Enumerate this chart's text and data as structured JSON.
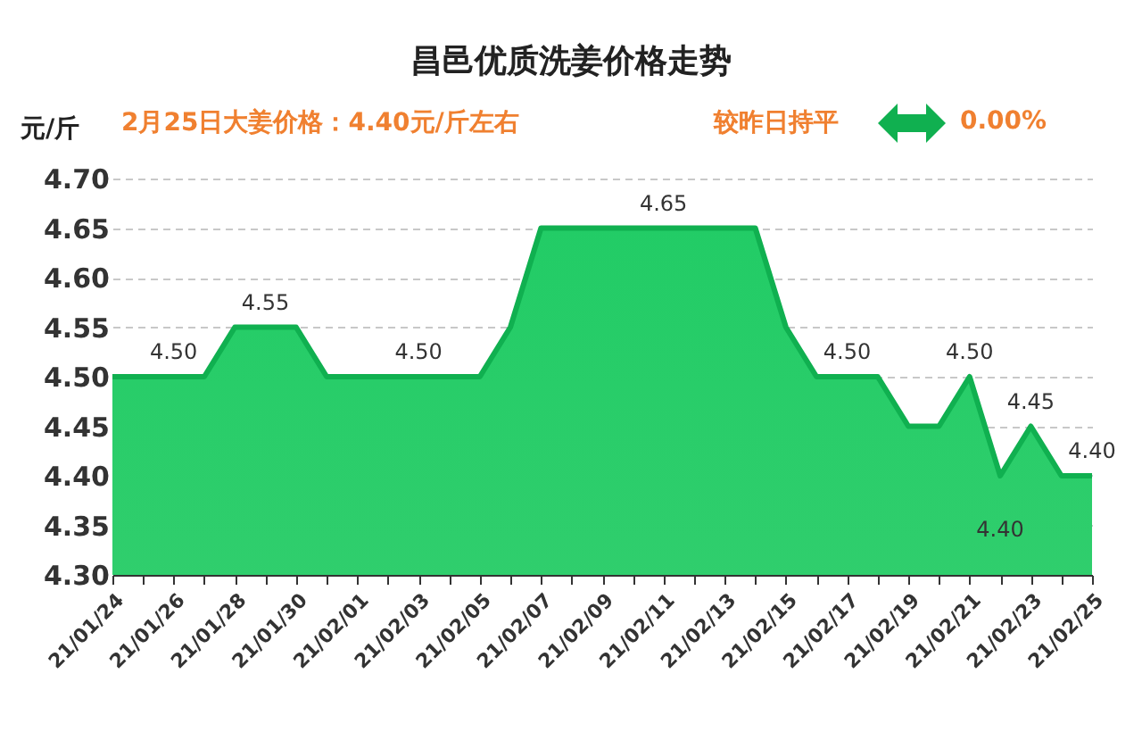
{
  "chart_data": {
    "type": "area",
    "title": "昌邑优质洗姜价格走势",
    "subtitle": "2月25日大姜价格：4.40元/斤左右",
    "ylabel": "元/斤",
    "annotations": [
      "较昨日持平",
      "0.00%"
    ],
    "categories": [
      "21/01/24",
      null,
      "21/01/26",
      null,
      "21/01/28",
      null,
      "21/01/30",
      null,
      "21/02/01",
      null,
      "21/02/03",
      null,
      "21/02/05",
      null,
      "21/02/07",
      null,
      "21/02/09",
      null,
      "21/02/11",
      null,
      "21/02/13",
      null,
      "21/02/15",
      null,
      "21/02/17",
      null,
      "21/02/19",
      null,
      "21/02/21",
      null,
      "21/02/23",
      null,
      "21/02/25"
    ],
    "series": [
      {
        "color": "#10b050",
        "values": [
          4.5,
          4.5,
          4.5,
          4.5,
          4.55,
          4.55,
          4.55,
          4.5,
          4.5,
          4.5,
          4.5,
          4.5,
          4.5,
          4.55,
          4.65,
          4.65,
          4.65,
          4.65,
          4.65,
          4.65,
          4.65,
          4.65,
          4.55,
          4.5,
          4.5,
          4.5,
          4.45,
          4.45,
          4.5,
          4.4,
          4.45,
          4.4,
          4.4
        ],
        "value_labels": [
          null,
          null,
          "4.50",
          null,
          null,
          "4.55",
          null,
          null,
          null,
          null,
          "4.50",
          null,
          null,
          null,
          null,
          null,
          null,
          null,
          "4.65",
          null,
          null,
          null,
          null,
          null,
          "4.50",
          null,
          null,
          null,
          "4.50",
          "4.40",
          "4.45",
          null,
          "4.40"
        ]
      }
    ],
    "ylim": [
      4.3,
      4.7
    ],
    "yticks": [
      "4.30",
      "4.35",
      "4.40",
      "4.45",
      "4.50",
      "4.55",
      "4.60",
      "4.65",
      "4.70"
    ],
    "grid": "y"
  }
}
